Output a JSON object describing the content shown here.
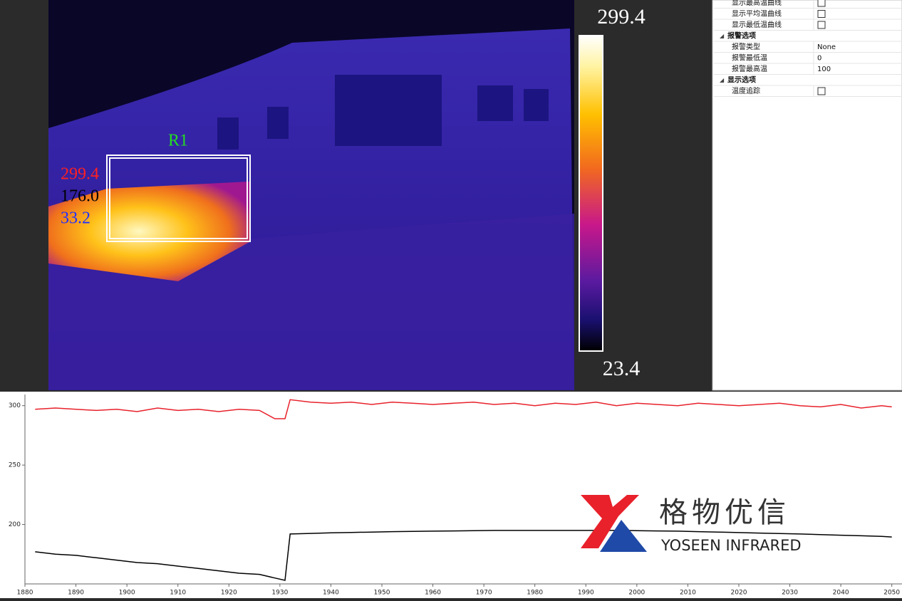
{
  "thermal_view": {
    "scale_max": "299.4",
    "scale_min": "23.4",
    "roi": {
      "label": "R1",
      "max": "299.4",
      "avg": "176.0",
      "min": "33.2"
    }
  },
  "properties": {
    "rows": [
      {
        "name": "显示最高温曲线",
        "kind": "checkbox"
      },
      {
        "name": "显示平均温曲线",
        "kind": "checkbox"
      },
      {
        "name": "显示最低温曲线",
        "kind": "checkbox"
      },
      {
        "name": "报警选项",
        "kind": "section"
      },
      {
        "name": "报警类型",
        "kind": "value",
        "value": "None"
      },
      {
        "name": "报警最低温",
        "kind": "value",
        "value": "0"
      },
      {
        "name": "报警最高温",
        "kind": "value",
        "value": "100"
      },
      {
        "name": "显示选项",
        "kind": "section"
      },
      {
        "name": "温度追踪",
        "kind": "checkbox"
      }
    ]
  },
  "logo": {
    "name": "格物优信",
    "subtitle": "YOSEEN INFRARED"
  },
  "chart_data": {
    "type": "line",
    "x": [
      1882,
      1886,
      1890,
      1894,
      1898,
      1902,
      1906,
      1910,
      1914,
      1918,
      1922,
      1926,
      1929,
      1931,
      1932,
      1936,
      1940,
      1944,
      1948,
      1952,
      1956,
      1960,
      1964,
      1968,
      1972,
      1976,
      1980,
      1984,
      1988,
      1992,
      1996,
      2000,
      2004,
      2008,
      2012,
      2016,
      2020,
      2024,
      2028,
      2032,
      2036,
      2040,
      2044,
      2048,
      2050
    ],
    "series": [
      {
        "color": "#e8212b",
        "values": [
          297,
          298,
          297,
          296,
          297,
          295,
          298,
          296,
          297,
          295,
          297,
          296,
          289,
          289,
          305,
          303,
          302,
          303,
          301,
          303,
          302,
          301,
          302,
          303,
          301,
          302,
          300,
          302,
          301,
          303,
          300,
          302,
          301,
          300,
          302,
          301,
          300,
          301,
          302,
          300,
          299,
          301,
          298,
          300,
          299
        ]
      },
      {
        "color": "#000000",
        "values": [
          177,
          175,
          174,
          172,
          170,
          168,
          167,
          165,
          163,
          161,
          159,
          158,
          155,
          153,
          192,
          192.5,
          193,
          193.3,
          193.6,
          194,
          194.2,
          194.4,
          194.6,
          194.8,
          195,
          195,
          195,
          195,
          195,
          195,
          195,
          194.8,
          194.6,
          194.4,
          194,
          193.6,
          193.2,
          192.8,
          192.4,
          192,
          191.5,
          191,
          190.5,
          190,
          189.5
        ]
      }
    ],
    "xlim": [
      1880,
      2052
    ],
    "xticks": [
      1880,
      1890,
      1900,
      1910,
      1920,
      1930,
      1940,
      1950,
      1960,
      1970,
      1980,
      1990,
      2000,
      2010,
      2020,
      2030,
      2040,
      2050
    ],
    "ylim": [
      150,
      307
    ],
    "yticks": [
      200,
      250,
      300
    ]
  }
}
